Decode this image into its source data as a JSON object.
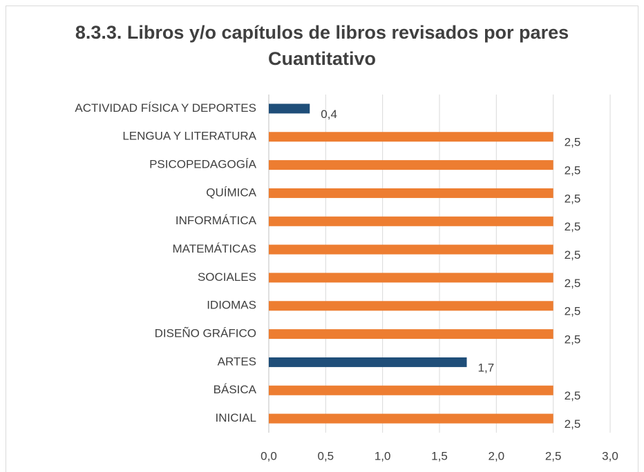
{
  "chart_data": {
    "type": "bar",
    "orientation": "horizontal",
    "title": "8.3.3. Libros y/o capítulos de libros revisados por pares Cuantitativo",
    "categories": [
      "ACTIVIDAD FÍSICA Y DEPORTES",
      "LENGUA Y LITERATURA",
      "PSICOPEDAGOGÍA",
      "QUÍMICA",
      "INFORMÁTICA",
      "MATEMÁTICAS",
      "SOCIALES",
      "IDIOMAS",
      "DISEÑO GRÁFICO",
      "ARTES",
      "BÁSICA",
      "INICIAL"
    ],
    "values": [
      0.36,
      2.5,
      2.5,
      2.5,
      2.5,
      2.5,
      2.5,
      2.5,
      2.5,
      1.74,
      2.5,
      2.5
    ],
    "value_labels": [
      "0,4",
      "2,5",
      "2,5",
      "2,5",
      "2,5",
      "2,5",
      "2,5",
      "2,5",
      "2,5",
      "1,7",
      "2,5",
      "2,5"
    ],
    "colors": [
      "#1f4e79",
      "#ed7d31",
      "#ed7d31",
      "#ed7d31",
      "#ed7d31",
      "#ed7d31",
      "#ed7d31",
      "#ed7d31",
      "#ed7d31",
      "#1f4e79",
      "#ed7d31",
      "#ed7d31"
    ],
    "xlim": [
      0,
      3
    ],
    "xticks": [
      {
        "value": 0,
        "label": "0,0"
      },
      {
        "value": 0.5,
        "label": "0,5"
      },
      {
        "value": 1,
        "label": "1,0"
      },
      {
        "value": 1.5,
        "label": "1,5"
      },
      {
        "value": 2,
        "label": "2,0"
      },
      {
        "value": 2.5,
        "label": "2,5"
      },
      {
        "value": 3,
        "label": "3,0"
      }
    ],
    "grid": true
  }
}
